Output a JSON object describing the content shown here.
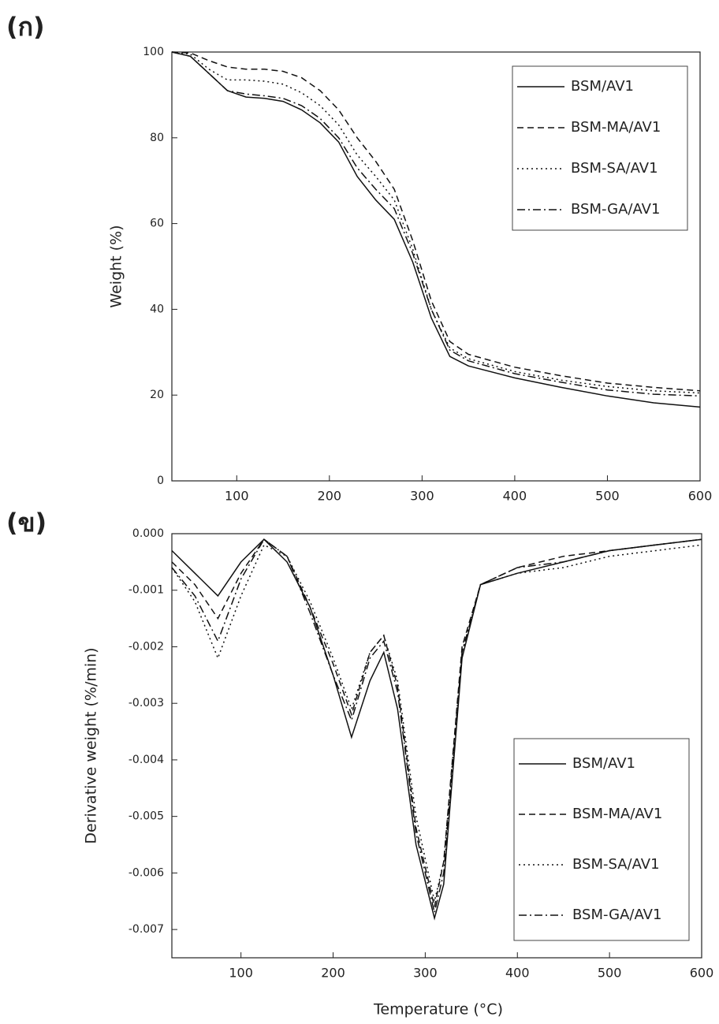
{
  "chart_data": [
    {
      "type": "line",
      "panel_label": "(ก)",
      "ylabel": "Weight (%)",
      "x": [
        30,
        50,
        70,
        90,
        110,
        130,
        150,
        170,
        190,
        210,
        230,
        250,
        270,
        290,
        310,
        330,
        350,
        400,
        450,
        500,
        550,
        600
      ],
      "series": [
        {
          "name": "BSM/AV1",
          "color": "#111111",
          "dash": "solid",
          "values": [
            100,
            99,
            95,
            91,
            89.5,
            89.2,
            88.5,
            86.5,
            83.5,
            79,
            71,
            65.5,
            61,
            51,
            38,
            29,
            26.8,
            24,
            21.8,
            19.8,
            18.2,
            17.2
          ]
        },
        {
          "name": "BSM-MA/AV1",
          "color": "#111111",
          "dash": "dashed",
          "values": [
            100,
            99.8,
            98,
            96.5,
            96,
            96,
            95.5,
            94,
            91,
            86.5,
            80,
            74.5,
            68,
            56,
            42,
            32.5,
            29.5,
            26.5,
            24.5,
            22.8,
            21.8,
            21
          ]
        },
        {
          "name": "BSM-SA/AV1",
          "color": "#111111",
          "dash": "dotted",
          "values": [
            100,
            99.5,
            96,
            93.5,
            93.5,
            93.2,
            92.5,
            90.5,
            87.5,
            83,
            76,
            71,
            65.5,
            54,
            40,
            31,
            28.5,
            25.5,
            23.5,
            22,
            21,
            20.5
          ]
        },
        {
          "name": "BSM-GA/AV1",
          "color": "#111111",
          "dash": "dash-dot",
          "values": [
            100,
            99,
            95,
            91,
            90.2,
            89.8,
            89.2,
            87.5,
            84.5,
            80,
            73,
            68,
            63.5,
            53,
            40,
            30.5,
            28,
            25,
            23,
            21.2,
            20.2,
            19.8
          ]
        }
      ],
      "xlim": [
        30,
        600
      ],
      "xticks": [
        100,
        200,
        300,
        400,
        500,
        600
      ],
      "ylim": [
        0,
        100
      ],
      "yticks": [
        0,
        20,
        40,
        60,
        80,
        100
      ],
      "legend": "upper right"
    },
    {
      "type": "line",
      "panel_label": "(ข)",
      "xlabel": "Temperature (°C)",
      "ylabel": "Derivative weight (%/min)",
      "x": [
        25,
        50,
        75,
        100,
        125,
        150,
        175,
        200,
        220,
        240,
        255,
        270,
        290,
        310,
        320,
        340,
        360,
        400,
        450,
        500,
        550,
        600
      ],
      "series": [
        {
          "name": "BSM/AV1",
          "color": "#111111",
          "dash": "solid",
          "values": [
            -0.0003,
            -0.0007,
            -0.0011,
            -0.0005,
            -0.0001,
            -0.0005,
            -0.0013,
            -0.0025,
            -0.0036,
            -0.0026,
            -0.0021,
            -0.0031,
            -0.0055,
            -0.0068,
            -0.0062,
            -0.0022,
            -0.0009,
            -0.0007,
            -0.0005,
            -0.0003,
            -0.0002,
            -0.0001
          ]
        },
        {
          "name": "BSM-MA/AV1",
          "color": "#111111",
          "dash": "dashed",
          "values": [
            -0.0005,
            -0.0009,
            -0.0015,
            -0.0007,
            -0.0001,
            -0.0004,
            -0.0013,
            -0.0023,
            -0.0032,
            -0.0021,
            -0.0018,
            -0.0027,
            -0.0052,
            -0.0066,
            -0.0058,
            -0.002,
            -0.0009,
            -0.0006,
            -0.0004,
            -0.0003,
            -0.0002,
            -0.0001
          ]
        },
        {
          "name": "BSM-SA/AV1",
          "color": "#111111",
          "dash": "dotted",
          "values": [
            -0.0006,
            -0.0012,
            -0.0022,
            -0.0011,
            -0.0002,
            -0.0004,
            -0.0012,
            -0.0022,
            -0.0031,
            -0.0021,
            -0.0018,
            -0.0026,
            -0.005,
            -0.0065,
            -0.0058,
            -0.0021,
            -0.0009,
            -0.0007,
            -0.0006,
            -0.0004,
            -0.0003,
            -0.0002
          ]
        },
        {
          "name": "BSM-GA/AV1",
          "color": "#111111",
          "dash": "dash-dot",
          "values": [
            -0.0006,
            -0.0011,
            -0.0019,
            -0.0008,
            -0.0001,
            -0.0004,
            -0.0014,
            -0.0025,
            -0.0033,
            -0.0022,
            -0.0019,
            -0.0028,
            -0.0053,
            -0.0067,
            -0.006,
            -0.0021,
            -0.0009,
            -0.0006,
            -0.0005,
            -0.0003,
            -0.0002,
            -0.0001
          ]
        }
      ],
      "xlim": [
        25,
        600
      ],
      "xticks": [
        100,
        200,
        300,
        400,
        500,
        600
      ],
      "ylim": [
        -0.0075,
        0
      ],
      "yticks": [
        {
          "value": 0,
          "label": "0.000"
        },
        {
          "value": -0.001,
          "label": "-0.001"
        },
        {
          "value": -0.002,
          "label": "-0.002"
        },
        {
          "value": -0.003,
          "label": "-0.003"
        },
        {
          "value": -0.004,
          "label": "-0.004"
        },
        {
          "value": -0.005,
          "label": "-0.005"
        },
        {
          "value": -0.006,
          "label": "-0.006"
        },
        {
          "value": -0.007,
          "label": "-0.007"
        }
      ],
      "legend": "lower right"
    }
  ]
}
